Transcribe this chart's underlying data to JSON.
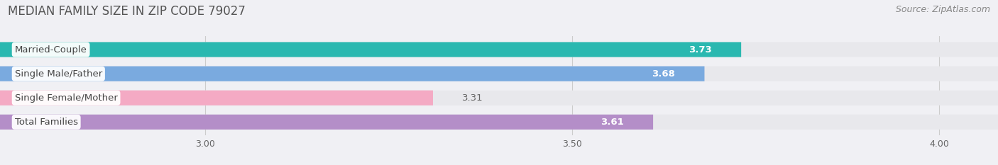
{
  "title": "MEDIAN FAMILY SIZE IN ZIP CODE 79027",
  "source": "Source: ZipAtlas.com",
  "categories": [
    "Married-Couple",
    "Single Male/Father",
    "Single Female/Mother",
    "Total Families"
  ],
  "values": [
    3.73,
    3.68,
    3.31,
    3.61
  ],
  "bar_colors": [
    "#2ab8b0",
    "#7aaadf",
    "#f4aac4",
    "#b48ec8"
  ],
  "xlim_left": 2.72,
  "xlim_right": 4.08,
  "xticks": [
    3.0,
    3.5,
    4.0
  ],
  "xtick_labels": [
    "3.00",
    "3.50",
    "4.00"
  ],
  "bar_height": 0.62,
  "bg_bar_color": "#e8e8ec",
  "value_color_inside": "#ffffff",
  "value_color_outside": "#666666",
  "background_color": "#f0f0f4",
  "title_fontsize": 12,
  "source_fontsize": 9,
  "label_fontsize": 9.5,
  "value_fontsize": 9.5,
  "inside_threshold": 3.5
}
